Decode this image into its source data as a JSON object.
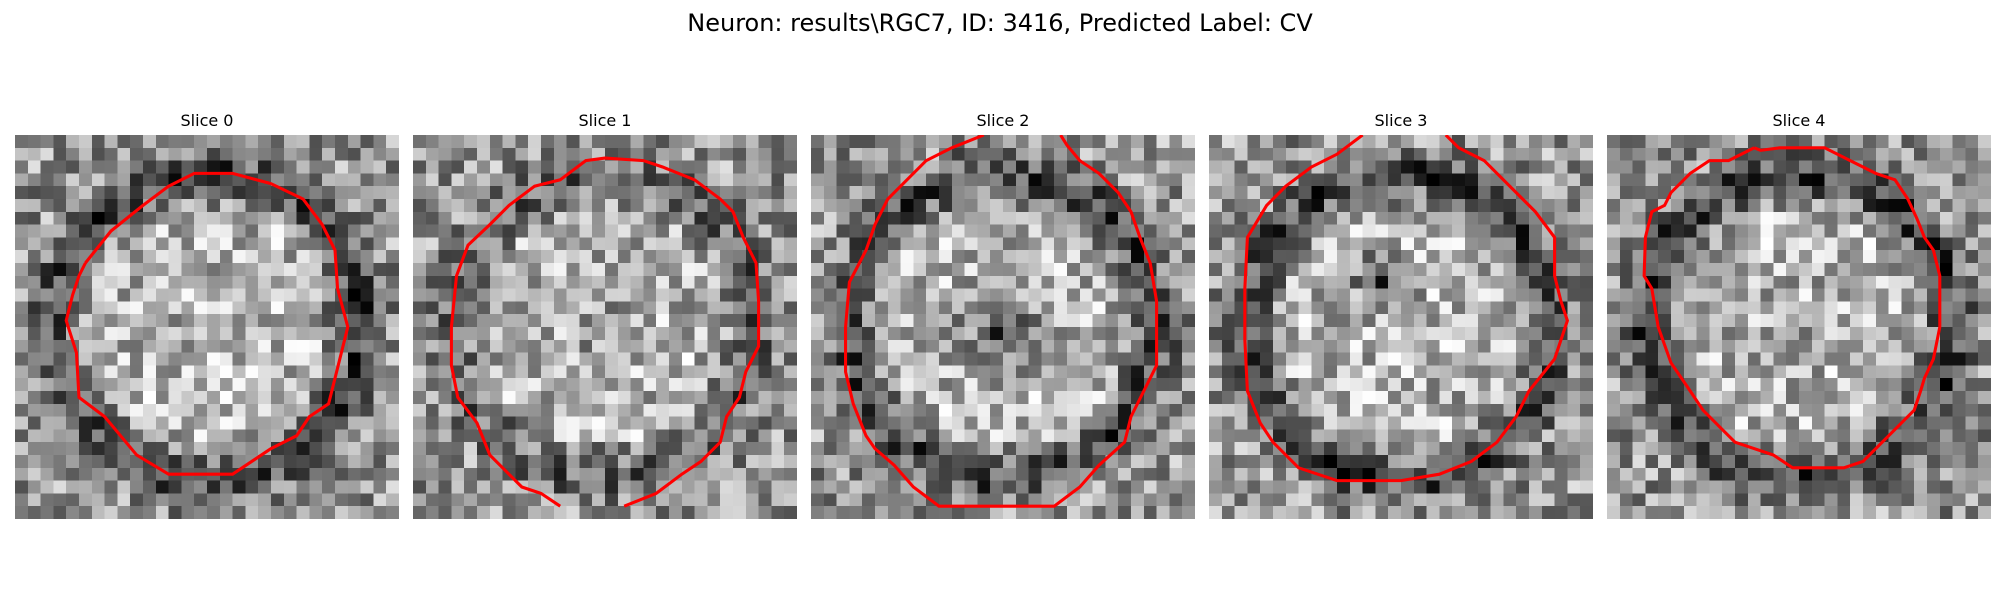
{
  "figure": {
    "title": "Neuron: results\\RGC7, ID: 3416, Predicted Label: CV"
  },
  "colors": {
    "contour": "#ff0000",
    "colormap": "gray"
  },
  "slices": [
    {
      "label": "Slice 0",
      "dark_ring": 0.95,
      "center_dark": 0.0,
      "side_dark": 0.0,
      "seed": 11
    },
    {
      "label": "Slice 1",
      "dark_ring": 0.55,
      "center_dark": 0.25,
      "side_dark": 0.0,
      "seed": 23
    },
    {
      "label": "Slice 2",
      "dark_ring": 0.85,
      "center_dark": 0.85,
      "side_dark": 0.0,
      "seed": 37
    },
    {
      "label": "Slice 3",
      "dark_ring": 0.9,
      "center_dark": 0.0,
      "side_dark": 0.8,
      "seed": 41
    },
    {
      "label": "Slice 4",
      "dark_ring": 1.0,
      "center_dark": 0.1,
      "side_dark": 0.0,
      "seed": 53
    }
  ]
}
